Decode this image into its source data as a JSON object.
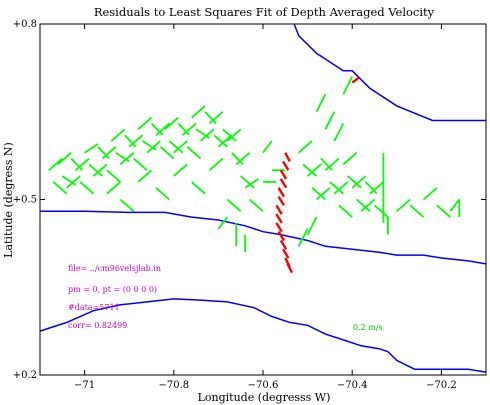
{
  "chart_data": {
    "type": "line",
    "title": "Residuals to Least Squares Fit of Depth Averaged Velocity",
    "xlabel": "Longitude (degresss W)",
    "ylabel": "Latitude (degress N)",
    "xlim": [
      -71.1,
      -70.1
    ],
    "ylim": [
      0.2,
      0.8
    ],
    "xticks": [
      -71,
      -70.8,
      -70.6,
      -70.4,
      -70.2
    ],
    "xtick_labels": [
      "−71",
      "−70.8",
      "−70.6",
      "−70.4",
      "−70.2"
    ],
    "yticks": [
      0.2,
      0.5,
      0.8
    ],
    "ytick_labels": [
      "+0.2",
      "+0.5",
      "+0.8"
    ],
    "grid": false,
    "colors": {
      "coast": "#0000ff",
      "residual": "#00ff00",
      "highlight": "#ff0000",
      "annotation": "#cc00cc",
      "scale": "#00cc00"
    },
    "annotations": {
      "file": "file= ../cm96velsjlab.in",
      "params": "pm = 0, pt = (0 0 0 0)",
      "ndata": "#data=5711",
      "corr": "corr= 0.82499",
      "scale": "0.2 m/s"
    },
    "coastlines": [
      {
        "x": [
          -70.53,
          -70.52,
          -70.48,
          -70.42,
          -70.4,
          -70.36,
          -70.3,
          -70.22,
          -70.1
        ],
        "y": [
          0.8,
          0.78,
          0.75,
          0.72,
          0.72,
          0.69,
          0.66,
          0.635,
          0.635
        ]
      },
      {
        "x": [
          -71.1,
          -71.0,
          -70.9,
          -70.82,
          -70.76,
          -70.7,
          -70.64,
          -70.6,
          -70.56,
          -70.5,
          -70.46,
          -70.4,
          -70.34,
          -70.3,
          -70.24,
          -70.2,
          -70.14,
          -70.1
        ],
        "y": [
          0.48,
          0.48,
          0.478,
          0.478,
          0.47,
          0.465,
          0.455,
          0.445,
          0.44,
          0.43,
          0.42,
          0.415,
          0.41,
          0.405,
          0.405,
          0.4,
          0.395,
          0.39
        ]
      },
      {
        "x": [
          -71.1,
          -71.04,
          -70.98,
          -70.92,
          -70.86,
          -70.8,
          -70.74,
          -70.68,
          -70.62,
          -70.58,
          -70.54,
          -70.5,
          -70.46,
          -70.42,
          -70.38,
          -70.34,
          -70.32,
          -70.3,
          -70.26,
          -70.22,
          -70.18,
          -70.14,
          -70.1
        ],
        "y": [
          0.275,
          0.29,
          0.31,
          0.32,
          0.325,
          0.33,
          0.328,
          0.325,
          0.315,
          0.3,
          0.29,
          0.285,
          0.27,
          0.26,
          0.25,
          0.245,
          0.24,
          0.225,
          0.21,
          0.21,
          0.21,
          0.21,
          0.205
        ]
      }
    ],
    "residual_vectors": [
      {
        "x": -71.08,
        "y": 0.55,
        "u": 0.03,
        "v": 0.02
      },
      {
        "x": -71.07,
        "y": 0.53,
        "u": 0.03,
        "v": -0.02
      },
      {
        "x": -71.06,
        "y": 0.56,
        "u": 0.03,
        "v": 0.02
      },
      {
        "x": -71.05,
        "y": 0.54,
        "u": 0.03,
        "v": -0.015
      },
      {
        "x": -71.04,
        "y": 0.52,
        "u": 0.03,
        "v": 0.02
      },
      {
        "x": -71.03,
        "y": 0.57,
        "u": 0.025,
        "v": -0.02
      },
      {
        "x": -71.02,
        "y": 0.55,
        "u": 0.03,
        "v": 0.02
      },
      {
        "x": -71.01,
        "y": 0.53,
        "u": 0.03,
        "v": -0.02
      },
      {
        "x": -71.0,
        "y": 0.58,
        "u": 0.03,
        "v": 0.015
      },
      {
        "x": -70.99,
        "y": 0.56,
        "u": 0.03,
        "v": -0.02
      },
      {
        "x": -70.98,
        "y": 0.54,
        "u": 0.03,
        "v": 0.02
      },
      {
        "x": -70.97,
        "y": 0.59,
        "u": 0.025,
        "v": -0.02
      },
      {
        "x": -70.96,
        "y": 0.57,
        "u": 0.03,
        "v": 0.02
      },
      {
        "x": -70.95,
        "y": 0.55,
        "u": 0.03,
        "v": -0.02
      },
      {
        "x": -70.94,
        "y": 0.6,
        "u": 0.03,
        "v": 0.02
      },
      {
        "x": -70.93,
        "y": 0.58,
        "u": 0.03,
        "v": -0.015
      },
      {
        "x": -70.92,
        "y": 0.56,
        "u": 0.03,
        "v": 0.02
      },
      {
        "x": -70.91,
        "y": 0.61,
        "u": 0.025,
        "v": -0.02
      },
      {
        "x": -70.9,
        "y": 0.59,
        "u": 0.03,
        "v": 0.02
      },
      {
        "x": -70.89,
        "y": 0.57,
        "u": 0.03,
        "v": -0.02
      },
      {
        "x": -70.88,
        "y": 0.62,
        "u": 0.03,
        "v": 0.02
      },
      {
        "x": -70.87,
        "y": 0.6,
        "u": 0.03,
        "v": -0.015
      },
      {
        "x": -70.86,
        "y": 0.58,
        "u": 0.03,
        "v": 0.02
      },
      {
        "x": -70.85,
        "y": 0.63,
        "u": 0.025,
        "v": -0.02
      },
      {
        "x": -70.84,
        "y": 0.61,
        "u": 0.03,
        "v": 0.02
      },
      {
        "x": -70.83,
        "y": 0.59,
        "u": 0.03,
        "v": -0.02
      },
      {
        "x": -70.82,
        "y": 0.62,
        "u": 0.03,
        "v": 0.02
      },
      {
        "x": -70.81,
        "y": 0.6,
        "u": 0.03,
        "v": -0.02
      },
      {
        "x": -70.8,
        "y": 0.58,
        "u": 0.03,
        "v": 0.02
      },
      {
        "x": -70.79,
        "y": 0.63,
        "u": 0.025,
        "v": -0.02
      },
      {
        "x": -70.78,
        "y": 0.61,
        "u": 0.03,
        "v": 0.02
      },
      {
        "x": -70.77,
        "y": 0.59,
        "u": 0.03,
        "v": -0.02
      },
      {
        "x": -70.76,
        "y": 0.64,
        "u": 0.03,
        "v": 0.02
      },
      {
        "x": -70.75,
        "y": 0.62,
        "u": 0.03,
        "v": -0.015
      },
      {
        "x": -70.74,
        "y": 0.6,
        "u": 0.03,
        "v": 0.02
      },
      {
        "x": -70.73,
        "y": 0.65,
        "u": 0.025,
        "v": -0.02
      },
      {
        "x": -70.72,
        "y": 0.63,
        "u": 0.03,
        "v": 0.02
      },
      {
        "x": -70.71,
        "y": 0.61,
        "u": 0.03,
        "v": -0.02
      },
      {
        "x": -70.7,
        "y": 0.59,
        "u": 0.03,
        "v": 0.02
      },
      {
        "x": -70.69,
        "y": 0.62,
        "u": 0.03,
        "v": -0.02
      },
      {
        "x": -70.68,
        "y": 0.6,
        "u": 0.03,
        "v": 0.02
      },
      {
        "x": -70.67,
        "y": 0.58,
        "u": 0.025,
        "v": -0.02
      },
      {
        "x": -70.66,
        "y": 0.56,
        "u": 0.03,
        "v": 0.02
      },
      {
        "x": -70.65,
        "y": 0.54,
        "u": 0.03,
        "v": -0.02
      },
      {
        "x": -70.64,
        "y": 0.52,
        "u": 0.03,
        "v": 0.015
      },
      {
        "x": -70.63,
        "y": 0.5,
        "u": 0.03,
        "v": -0.02
      },
      {
        "x": -70.95,
        "y": 0.51,
        "u": 0.03,
        "v": 0.02
      },
      {
        "x": -70.92,
        "y": 0.5,
        "u": 0.03,
        "v": -0.02
      },
      {
        "x": -70.88,
        "y": 0.53,
        "u": 0.03,
        "v": 0.02
      },
      {
        "x": -70.84,
        "y": 0.52,
        "u": 0.03,
        "v": -0.02
      },
      {
        "x": -70.8,
        "y": 0.54,
        "u": 0.03,
        "v": 0.02
      },
      {
        "x": -70.76,
        "y": 0.53,
        "u": 0.03,
        "v": -0.02
      },
      {
        "x": -70.72,
        "y": 0.55,
        "u": 0.03,
        "v": 0.02
      },
      {
        "x": -70.68,
        "y": 0.5,
        "u": 0.03,
        "v": -0.02
      },
      {
        "x": -70.66,
        "y": 0.46,
        "u": 0.0,
        "v": -0.04
      },
      {
        "x": -70.64,
        "y": 0.44,
        "u": 0.0,
        "v": -0.03
      },
      {
        "x": -70.52,
        "y": 0.58,
        "u": 0.03,
        "v": 0.02
      },
      {
        "x": -70.51,
        "y": 0.56,
        "u": 0.03,
        "v": -0.02
      },
      {
        "x": -70.5,
        "y": 0.54,
        "u": 0.03,
        "v": 0.02
      },
      {
        "x": -70.49,
        "y": 0.52,
        "u": 0.03,
        "v": -0.02
      },
      {
        "x": -70.48,
        "y": 0.5,
        "u": 0.03,
        "v": 0.02
      },
      {
        "x": -70.47,
        "y": 0.57,
        "u": 0.025,
        "v": -0.02
      },
      {
        "x": -70.46,
        "y": 0.55,
        "u": 0.03,
        "v": 0.02
      },
      {
        "x": -70.45,
        "y": 0.53,
        "u": 0.03,
        "v": -0.02
      },
      {
        "x": -70.44,
        "y": 0.51,
        "u": 0.03,
        "v": 0.02
      },
      {
        "x": -70.43,
        "y": 0.49,
        "u": 0.03,
        "v": -0.02
      },
      {
        "x": -70.42,
        "y": 0.56,
        "u": 0.03,
        "v": 0.02
      },
      {
        "x": -70.41,
        "y": 0.54,
        "u": 0.03,
        "v": -0.02
      },
      {
        "x": -70.4,
        "y": 0.52,
        "u": 0.03,
        "v": 0.02
      },
      {
        "x": -70.39,
        "y": 0.5,
        "u": 0.03,
        "v": -0.02
      },
      {
        "x": -70.38,
        "y": 0.48,
        "u": 0.03,
        "v": 0.02
      },
      {
        "x": -70.37,
        "y": 0.53,
        "u": 0.025,
        "v": -0.02
      },
      {
        "x": -70.36,
        "y": 0.51,
        "u": 0.03,
        "v": 0.02
      },
      {
        "x": -70.35,
        "y": 0.49,
        "u": 0.03,
        "v": -0.02
      },
      {
        "x": -70.48,
        "y": 0.65,
        "u": 0.02,
        "v": 0.03
      },
      {
        "x": -70.46,
        "y": 0.62,
        "u": 0.02,
        "v": 0.03
      },
      {
        "x": -70.44,
        "y": 0.6,
        "u": 0.02,
        "v": 0.03
      },
      {
        "x": -70.42,
        "y": 0.68,
        "u": 0.02,
        "v": 0.03
      },
      {
        "x": -70.33,
        "y": 0.58,
        "u": 0.0,
        "v": -0.04
      },
      {
        "x": -70.33,
        "y": 0.54,
        "u": 0.0,
        "v": -0.04
      },
      {
        "x": -70.33,
        "y": 0.5,
        "u": 0.0,
        "v": -0.04
      },
      {
        "x": -70.32,
        "y": 0.47,
        "u": 0.0,
        "v": -0.03
      },
      {
        "x": -70.3,
        "y": 0.48,
        "u": 0.03,
        "v": 0.02
      },
      {
        "x": -70.27,
        "y": 0.49,
        "u": 0.03,
        "v": -0.02
      },
      {
        "x": -70.24,
        "y": 0.5,
        "u": 0.03,
        "v": 0.02
      },
      {
        "x": -70.21,
        "y": 0.49,
        "u": 0.03,
        "v": -0.02
      },
      {
        "x": -70.18,
        "y": 0.48,
        "u": 0.02,
        "v": 0.02
      },
      {
        "x": -70.16,
        "y": 0.47,
        "u": 0.0,
        "v": 0.03
      },
      {
        "x": -70.5,
        "y": 0.44,
        "u": 0.02,
        "v": 0.03
      },
      {
        "x": -70.52,
        "y": 0.42,
        "u": 0.02,
        "v": 0.03
      },
      {
        "x": -70.6,
        "y": 0.53,
        "u": 0.03,
        "v": 0.0
      },
      {
        "x": -70.58,
        "y": 0.55,
        "u": 0.03,
        "v": 0.0
      },
      {
        "x": -70.7,
        "y": 0.45,
        "u": 0.02,
        "v": 0.02
      },
      {
        "x": -70.6,
        "y": 0.58,
        "u": 0.02,
        "v": 0.02
      }
    ],
    "highlight_vectors": [
      {
        "x": -70.55,
        "y": 0.58,
        "u": 0.01,
        "v": -0.015
      },
      {
        "x": -70.555,
        "y": 0.565,
        "u": 0.012,
        "v": -0.015
      },
      {
        "x": -70.56,
        "y": 0.55,
        "u": 0.012,
        "v": -0.015
      },
      {
        "x": -70.56,
        "y": 0.535,
        "u": 0.012,
        "v": -0.015
      },
      {
        "x": -70.565,
        "y": 0.52,
        "u": 0.012,
        "v": -0.015
      },
      {
        "x": -70.565,
        "y": 0.505,
        "u": 0.012,
        "v": -0.015
      },
      {
        "x": -70.57,
        "y": 0.49,
        "u": 0.012,
        "v": -0.015
      },
      {
        "x": -70.57,
        "y": 0.475,
        "u": 0.012,
        "v": -0.015
      },
      {
        "x": -70.57,
        "y": 0.46,
        "u": 0.012,
        "v": -0.015
      },
      {
        "x": -70.565,
        "y": 0.445,
        "u": 0.012,
        "v": -0.015
      },
      {
        "x": -70.56,
        "y": 0.43,
        "u": 0.012,
        "v": -0.015
      },
      {
        "x": -70.555,
        "y": 0.415,
        "u": 0.012,
        "v": -0.015
      },
      {
        "x": -70.55,
        "y": 0.4,
        "u": 0.01,
        "v": -0.015
      },
      {
        "x": -70.545,
        "y": 0.39,
        "u": 0.01,
        "v": -0.015
      },
      {
        "x": -70.4,
        "y": 0.7,
        "u": 0.015,
        "v": 0.008
      }
    ]
  }
}
